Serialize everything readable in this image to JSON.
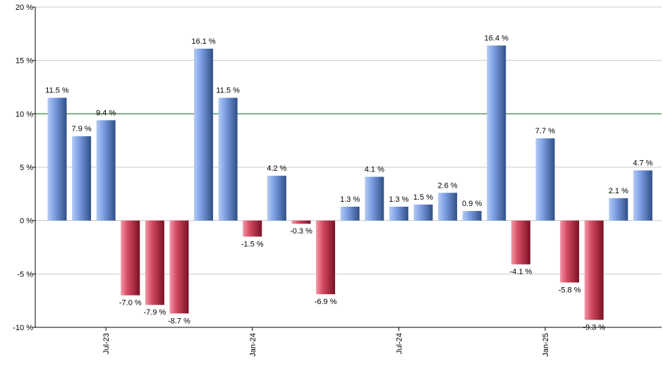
{
  "chart_data": {
    "type": "bar",
    "title": "",
    "xlabel": "",
    "ylabel": "",
    "ylim": [
      -10,
      20
    ],
    "y_ticks": [
      20,
      15,
      10,
      5,
      0,
      -5,
      -10
    ],
    "y_tick_labels": [
      "20 %",
      "15 %",
      "10 %",
      "5 %",
      "0 %",
      "-5 %",
      "-10 %"
    ],
    "x_tick_labels": [
      {
        "label": "Jul-23",
        "index": 2
      },
      {
        "label": "Jan-24",
        "index": 8
      },
      {
        "label": "Jul-24",
        "index": 14
      },
      {
        "label": "Jan-25",
        "index": 20
      }
    ],
    "reference_line": {
      "value": 10,
      "color": "#2e7d32"
    },
    "grid": true,
    "colors": {
      "positive": "#6f93d9",
      "negative": "#c9384f"
    },
    "values": [
      11.5,
      7.9,
      9.4,
      -7.0,
      -7.9,
      -8.7,
      16.1,
      11.5,
      -1.5,
      4.2,
      -0.3,
      -6.9,
      1.3,
      4.1,
      1.3,
      1.5,
      2.6,
      0.9,
      16.4,
      -4.1,
      7.7,
      -5.8,
      -9.3,
      2.1,
      4.7
    ],
    "labels": [
      "11.5 %",
      "7.9 %",
      "9.4 %",
      "-7.0 %",
      "-7.9 %",
      "-8.7 %",
      "16.1 %",
      "11.5 %",
      "-1.5 %",
      "4.2 %",
      "-0.3 %",
      "-6.9 %",
      "1.3 %",
      "4.1 %",
      "1.3 %",
      "1.5 %",
      "2.6 %",
      "0.9 %",
      "16.4 %",
      "-4.1 %",
      "7.7 %",
      "-5.8 %",
      "-9.3 %",
      "2.1 %",
      "4.7 %"
    ]
  }
}
